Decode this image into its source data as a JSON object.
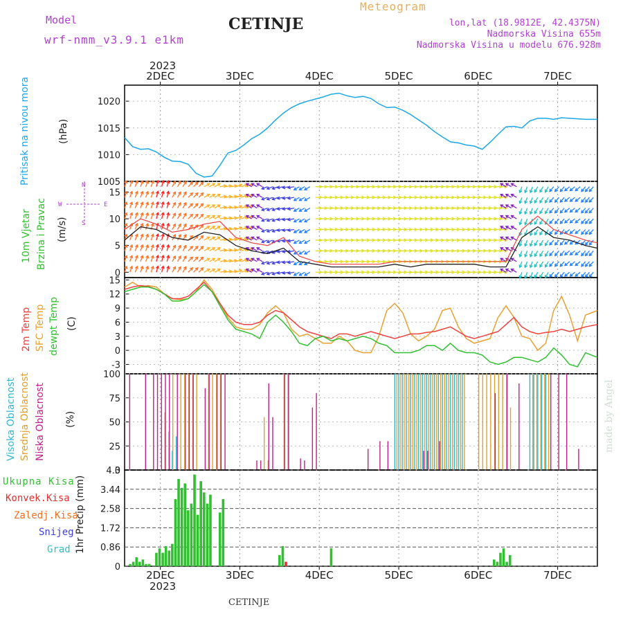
{
  "header": {
    "model_label": "Model",
    "model_name": "wrf-nmm_v3.9.1 e1km",
    "city_title": "CETINJE",
    "meteogram_label": "Meteogram",
    "lonlat": "lon,lat (18.9812E, 42.4375N)",
    "altitude": "Nadmorska Visina 655m",
    "model_altitude": "Nadmorska Visina u modelu 676.928m",
    "credit": "made by Angel",
    "footer_city": "CETINJE"
  },
  "time_axis": {
    "top_year": "2023",
    "bottom_year": "2023",
    "days": [
      "2DEC",
      "3DEC",
      "4DEC",
      "5DEC",
      "6DEC",
      "7DEC"
    ],
    "range_days": [
      1.55,
      7.5
    ]
  },
  "colors": {
    "pressure": "#1ba7e8",
    "temp2m": "#f04040",
    "sfc_temp": "#e8a030",
    "dewpt": "#30c030",
    "cloud_high": "#30b8d0",
    "cloud_mid": "#e0a030",
    "cloud_low": "#c0208a",
    "precip_total": "#30c030",
    "precip_conv": "#e03030",
    "precip_frozen": "#f07020",
    "precip_snow": "#4040e0",
    "precip_grad": "#30c0c0",
    "purple_text": "#b040d0",
    "orange_text": "#e0b060"
  },
  "chart_data": [
    {
      "type": "line",
      "name": "pressure",
      "ylabel_main": "Pritisak na nivou mora",
      "unit": "(hPa)",
      "ylim": [
        1005,
        1023
      ],
      "yticks": [
        "1005",
        "1010",
        "1015",
        "1020"
      ],
      "x": [
        1.55,
        1.65,
        1.75,
        1.85,
        1.95,
        2.05,
        2.15,
        2.25,
        2.35,
        2.45,
        2.55,
        2.65,
        2.75,
        2.85,
        2.95,
        3.05,
        3.15,
        3.25,
        3.35,
        3.45,
        3.55,
        3.65,
        3.75,
        3.85,
        3.95,
        4.05,
        4.15,
        4.25,
        4.35,
        4.45,
        4.55,
        4.65,
        4.75,
        4.85,
        4.95,
        5.05,
        5.15,
        5.25,
        5.35,
        5.45,
        5.55,
        5.65,
        5.75,
        5.85,
        5.95,
        6.05,
        6.15,
        6.25,
        6.35,
        6.45,
        6.55,
        6.65,
        6.75,
        6.85,
        6.95,
        7.05,
        7.15,
        7.25,
        7.35,
        7.5
      ],
      "values": [
        1013.2,
        1011.5,
        1011.0,
        1011.1,
        1010.5,
        1009.5,
        1008.8,
        1008.7,
        1008.2,
        1006.5,
        1005.8,
        1006.0,
        1008.0,
        1010.3,
        1010.8,
        1011.8,
        1013.0,
        1013.8,
        1015.0,
        1016.5,
        1017.8,
        1018.8,
        1019.5,
        1020.0,
        1020.4,
        1020.8,
        1021.3,
        1021.5,
        1021.0,
        1020.7,
        1020.9,
        1020.5,
        1019.5,
        1018.8,
        1018.9,
        1018.3,
        1017.5,
        1016.5,
        1015.5,
        1014.3,
        1013.3,
        1012.4,
        1012.2,
        1011.8,
        1011.6,
        1011.0,
        1012.3,
        1013.8,
        1015.2,
        1015.3,
        1015.0,
        1016.3,
        1016.8,
        1016.8,
        1016.6,
        1016.9,
        1016.8,
        1016.7,
        1016.6,
        1016.6
      ]
    },
    {
      "type": "line",
      "name": "wind",
      "ylabel_main": "10m Vjetar",
      "ylabel_sub": "Brzina i Pravac",
      "unit": "(m/s)",
      "legend_compass": [
        "W",
        "E",
        "N",
        "S"
      ],
      "ylim": [
        -1,
        17
      ],
      "yticks": [
        "0",
        "5",
        "10",
        "15"
      ],
      "x": [
        1.55,
        1.75,
        1.95,
        2.15,
        2.35,
        2.55,
        2.75,
        2.95,
        3.15,
        3.35,
        3.55,
        3.75,
        3.95,
        4.15,
        4.35,
        4.55,
        4.75,
        4.95,
        5.15,
        5.35,
        5.55,
        5.75,
        5.95,
        6.15,
        6.35,
        6.55,
        6.75,
        6.95,
        7.15,
        7.35,
        7.5
      ],
      "speed": [
        6.0,
        8.5,
        8.0,
        6.5,
        6.0,
        7.5,
        7.0,
        5.0,
        4.0,
        3.5,
        4.5,
        2.0,
        1.5,
        1.0,
        1.0,
        1.0,
        1.0,
        1.5,
        1.0,
        1.5,
        1.5,
        1.5,
        1.5,
        1.0,
        1.0,
        6.5,
        8.5,
        6.5,
        6.0,
        5.0,
        4.5
      ],
      "gust": [
        8.0,
        10.0,
        9.0,
        7.5,
        8.0,
        9.0,
        9.5,
        6.5,
        5.5,
        5.0,
        6.5,
        3.0,
        2.0,
        1.5,
        1.5,
        1.5,
        1.5,
        2.0,
        2.0,
        2.0,
        2.0,
        2.0,
        2.0,
        2.0,
        2.0,
        8.0,
        10.5,
        8.0,
        7.0,
        6.0,
        5.5
      ],
      "direction_deg": [
        20,
        20,
        15,
        30,
        45,
        60,
        80,
        70,
        300,
        250,
        260,
        240,
        90,
        90,
        90,
        90,
        90,
        90,
        90,
        90,
        90,
        90,
        90,
        90,
        300,
        200,
        210,
        220,
        230,
        220,
        210
      ]
    },
    {
      "type": "line",
      "name": "temperature",
      "ylabel_lines": [
        "2m Temp",
        "SFC Temp",
        "dewpt Temp"
      ],
      "unit": "(C)",
      "ylim": [
        -5,
        15.5
      ],
      "yticks": [
        "-3",
        "0",
        "3",
        "6",
        "9",
        "12",
        "15"
      ],
      "x": [
        1.55,
        1.65,
        1.75,
        1.85,
        1.95,
        2.05,
        2.15,
        2.25,
        2.35,
        2.45,
        2.55,
        2.65,
        2.75,
        2.85,
        2.95,
        3.05,
        3.15,
        3.25,
        3.35,
        3.45,
        3.55,
        3.65,
        3.75,
        3.85,
        3.95,
        4.05,
        4.15,
        4.25,
        4.35,
        4.45,
        4.55,
        4.65,
        4.75,
        4.85,
        4.95,
        5.05,
        5.15,
        5.25,
        5.35,
        5.45,
        5.55,
        5.65,
        5.75,
        5.85,
        5.95,
        6.05,
        6.15,
        6.25,
        6.35,
        6.45,
        6.55,
        6.65,
        6.75,
        6.85,
        6.95,
        7.05,
        7.15,
        7.25,
        7.35,
        7.5
      ],
      "series": [
        {
          "name": "2m Temp",
          "values": [
            13.0,
            13.5,
            13.8,
            13.6,
            13.0,
            12.0,
            11.0,
            11.0,
            11.5,
            13.0,
            14.5,
            12.5,
            10.0,
            7.5,
            6.0,
            5.5,
            5.5,
            6.0,
            7.5,
            8.5,
            8.0,
            6.5,
            5.0,
            4.0,
            3.5,
            3.0,
            2.5,
            3.5,
            3.5,
            3.0,
            3.5,
            4.0,
            3.5,
            3.0,
            2.5,
            3.0,
            3.5,
            3.5,
            3.8,
            4.0,
            4.5,
            5.0,
            4.0,
            3.0,
            2.5,
            3.0,
            3.5,
            4.0,
            5.5,
            7.0,
            5.0,
            4.0,
            3.5,
            3.8,
            4.0,
            4.5,
            4.0,
            4.5,
            5.0,
            5.5
          ]
        },
        {
          "name": "SFC Temp",
          "values": [
            13.5,
            14.5,
            13.5,
            13.8,
            13.5,
            12.0,
            11.0,
            10.8,
            11.0,
            12.5,
            15.0,
            13.0,
            10.0,
            7.0,
            5.0,
            4.5,
            4.5,
            5.5,
            8.0,
            9.5,
            8.0,
            4.5,
            3.0,
            3.5,
            2.5,
            1.5,
            1.5,
            3.0,
            2.0,
            0.0,
            -0.5,
            -0.5,
            3.0,
            8.5,
            10.0,
            8.0,
            3.5,
            2.0,
            3.0,
            4.5,
            8.5,
            9.0,
            5.0,
            2.5,
            1.5,
            2.0,
            2.5,
            7.0,
            9.5,
            7.0,
            3.0,
            2.5,
            0.0,
            1.5,
            8.5,
            11.5,
            7.5,
            2.0,
            7.5,
            8.5
          ]
        },
        {
          "name": "dewpt Temp",
          "values": [
            12.5,
            13.0,
            13.5,
            13.5,
            13.0,
            12.0,
            10.5,
            10.5,
            11.0,
            12.5,
            14.0,
            12.5,
            9.5,
            6.5,
            4.5,
            4.0,
            3.5,
            2.5,
            6.0,
            7.5,
            6.0,
            4.0,
            1.5,
            1.0,
            2.5,
            3.0,
            2.0,
            2.5,
            2.0,
            2.5,
            3.0,
            2.5,
            1.5,
            1.0,
            -0.5,
            -0.5,
            -0.5,
            0.0,
            1.0,
            1.0,
            0.0,
            1.5,
            0.0,
            -0.5,
            -0.5,
            -1.0,
            -2.5,
            -3.0,
            -2.5,
            -1.5,
            -1.5,
            -2.0,
            -2.5,
            -1.5,
            0.5,
            -1.0,
            -3.0,
            -3.5,
            -0.5,
            -1.5
          ]
        }
      ]
    },
    {
      "type": "bar",
      "name": "clouds",
      "ylabel_lines": [
        "Visoka Oblacnost",
        "Srednja Oblacnost",
        "Niska Oblacnost"
      ],
      "unit": "(%)",
      "ylim": [
        0,
        100
      ],
      "yticks": [
        "0",
        "25",
        "50",
        "75",
        "100"
      ],
      "series": [
        {
          "name": "Visoka Oblacnost",
          "x": [
            2.15,
            2.2,
            4.95,
            5.0,
            5.05,
            5.1,
            5.15,
            5.2,
            5.25,
            5.3,
            5.35,
            5.4,
            5.45,
            5.5,
            5.55,
            5.6,
            5.65,
            5.7,
            5.75,
            5.8,
            6.65,
            6.7,
            6.75,
            6.8,
            6.85
          ],
          "values": [
            20,
            35,
            100,
            100,
            100,
            100,
            100,
            100,
            100,
            100,
            100,
            100,
            100,
            100,
            100,
            100,
            100,
            100,
            100,
            100,
            100,
            100,
            100,
            100,
            100
          ]
        },
        {
          "name": "Srednja Oblacnost",
          "x": [
            2.05,
            2.1,
            2.15,
            2.25,
            2.3,
            2.35,
            2.4,
            2.45,
            2.6,
            2.65,
            2.7,
            2.75,
            3.3,
            3.35,
            3.55,
            3.6,
            4.97,
            5.02,
            5.07,
            5.12,
            5.17,
            5.22,
            5.27,
            5.32,
            5.37,
            5.42,
            5.47,
            5.52,
            5.57,
            5.62,
            5.67,
            5.72,
            5.77,
            5.82,
            6.0,
            6.05,
            6.1,
            6.15,
            6.2,
            6.25,
            6.3,
            6.35,
            6.4,
            6.68,
            6.73,
            6.78,
            6.83,
            6.88
          ],
          "values": [
            60,
            40,
            100,
            100,
            100,
            100,
            100,
            100,
            100,
            100,
            100,
            100,
            55,
            10,
            100,
            100,
            100,
            100,
            100,
            100,
            100,
            100,
            100,
            100,
            100,
            100,
            100,
            100,
            100,
            100,
            100,
            100,
            100,
            100,
            100,
            100,
            100,
            100,
            100,
            100,
            100,
            100,
            65,
            100,
            100,
            100,
            100,
            100
          ]
        },
        {
          "name": "Niska Oblacnost",
          "x": [
            1.6,
            1.8,
            1.9,
            1.95,
            2.0,
            2.05,
            2.1,
            2.2,
            2.3,
            2.35,
            2.4,
            2.55,
            2.6,
            2.7,
            2.75,
            2.8,
            3.2,
            3.25,
            3.35,
            3.4,
            3.55,
            3.6,
            3.75,
            3.8,
            3.9,
            3.95,
            4.6,
            4.75,
            4.85,
            5.3,
            5.35,
            5.5,
            6.2,
            6.35,
            6.5,
            6.9,
            7.0,
            7.1,
            7.25
          ],
          "values": [
            100,
            100,
            100,
            100,
            100,
            100,
            100,
            100,
            100,
            100,
            100,
            85,
            100,
            100,
            100,
            100,
            10,
            10,
            90,
            55,
            100,
            100,
            12,
            10,
            65,
            80,
            22,
            30,
            30,
            20,
            20,
            30,
            80,
            100,
            90,
            100,
            100,
            100,
            22
          ]
        }
      ]
    },
    {
      "type": "bar",
      "name": "precipitation",
      "ylabel": "1hr Precip (mm)",
      "legend": [
        "Ukupna Kisa",
        "Konvek.Kisa",
        "Zaledj.Kisa",
        "Snijeg",
        "Grad"
      ],
      "ylim": [
        0,
        4.3
      ],
      "yticks": [
        "0",
        "0.86",
        "1.72",
        "2.58",
        "3.44",
        "4.3"
      ],
      "series": [
        {
          "name": "Ukupna Kisa",
          "x": [
            1.62,
            1.66,
            1.7,
            1.74,
            1.78,
            1.82,
            1.86,
            1.95,
            1.99,
            2.03,
            2.07,
            2.11,
            2.15,
            2.19,
            2.23,
            2.27,
            2.31,
            2.35,
            2.39,
            2.43,
            2.47,
            2.51,
            2.55,
            2.59,
            2.63,
            2.75,
            2.79,
            3.5,
            3.54,
            4.15,
            6.2,
            6.24,
            6.28,
            6.32,
            6.36,
            6.4
          ],
          "values": [
            0.1,
            0.2,
            0.4,
            0.2,
            0.3,
            0.1,
            0.1,
            0.6,
            0.8,
            0.6,
            0.9,
            0.7,
            1.0,
            3.0,
            3.9,
            3.5,
            3.7,
            2.5,
            2.8,
            4.1,
            2.3,
            3.8,
            3.3,
            2.8,
            3.2,
            2.4,
            3.0,
            0.5,
            0.9,
            0.8,
            0.3,
            0.2,
            0.6,
            0.8,
            0.2,
            0.5
          ]
        },
        {
          "name": "Konvek.Kisa",
          "x": [
            3.58
          ],
          "values": [
            0.2
          ]
        }
      ]
    }
  ]
}
